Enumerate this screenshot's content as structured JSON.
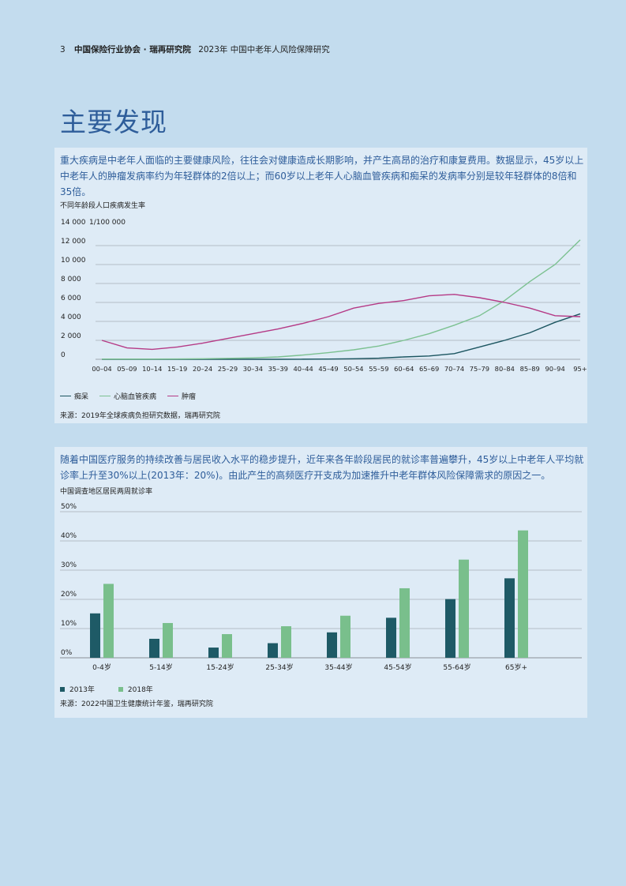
{
  "header": {
    "page_number": "3",
    "org": "中国保险行业协会 · 瑞再研究院",
    "doc_title": "2023年 中国中老年人风险保障研究"
  },
  "page_title": "主要发现",
  "section1": {
    "intro": "重大疾病是中老年人面临的主要健康风险，往往会对健康造成长期影响，并产生高昂的治疗和康复费用。数据显示，45岁以上中老年人的肿瘤发病率约为年轻群体的2倍以上；而60岁以上老年人心脑血管疾病和痴呆的发病率分别是较年轻群体的8倍和35倍。",
    "chart_title": "不同年龄段人口疾病发生率",
    "unit_label": "1/100 000",
    "source": "来源：2019年全球疾病负担研究数据，瑞再研究院"
  },
  "section2": {
    "intro": "随着中国医疗服务的持续改善与居民收入水平的稳步提升，近年来各年龄段居民的就诊率普遍攀升，45岁以上中老年人平均就诊率上升至30%以上(2013年：20%)。由此产生的高频医疗开支成为加速推升中老年群体风险保障需求的原因之一。",
    "chart_title": "中国调查地区居民两周就诊率",
    "source": "来源：2022中国卫生健康统计年鉴，瑞再研究院"
  },
  "chart_data": [
    {
      "type": "line",
      "title": "不同年龄段人口疾病发生率",
      "ylabel": "1/100 000",
      "ylim": [
        0,
        14000
      ],
      "yticks": [
        0,
        2000,
        4000,
        6000,
        8000,
        10000,
        12000,
        14000
      ],
      "ytick_labels": [
        "0",
        "2 000",
        "4 000",
        "6 000",
        "8 000",
        "10 000",
        "12 000",
        "14 000"
      ],
      "categories": [
        "00–04",
        "05–09",
        "10–14",
        "15–19",
        "20–24",
        "25–29",
        "30–34",
        "35–39",
        "40–44",
        "45–49",
        "50–54",
        "55–59",
        "60–64",
        "65–69",
        "70–74",
        "75–79",
        "80–84",
        "85–89",
        "90–94",
        "95+"
      ],
      "grid": true,
      "legend": "bottom-left",
      "series": [
        {
          "name": "痴呆",
          "color": "#1b5560",
          "values": [
            0,
            0,
            0,
            0,
            0,
            0,
            0,
            0,
            10,
            30,
            60,
            120,
            250,
            350,
            600,
            1300,
            2000,
            2800,
            3900,
            4800
          ]
        },
        {
          "name": "心脑血管疾病",
          "color": "#7cc191",
          "values": [
            30,
            30,
            30,
            40,
            60,
            100,
            150,
            250,
            450,
            700,
            1000,
            1400,
            2000,
            2700,
            3600,
            4600,
            6200,
            8200,
            10000,
            12600
          ]
        },
        {
          "name": "肿瘤",
          "color": "#b53a86",
          "values": [
            2000,
            1200,
            1050,
            1300,
            1700,
            2200,
            2700,
            3200,
            3800,
            4500,
            5400,
            5900,
            6200,
            6700,
            6850,
            6500,
            6000,
            5400,
            4600,
            4500
          ]
        }
      ]
    },
    {
      "type": "bar",
      "title": "中国调查地区居民两周就诊率",
      "ylim": [
        0,
        50
      ],
      "yticks": [
        0,
        10,
        20,
        30,
        40,
        50
      ],
      "ytick_labels": [
        "0%",
        "10%",
        "20%",
        "30%",
        "40%",
        "50%"
      ],
      "categories": [
        "0-4岁",
        "5-14岁",
        "15-24岁",
        "25-34岁",
        "35-44岁",
        "45-54岁",
        "55-64岁",
        "65岁+"
      ],
      "grid": true,
      "legend": "bottom-left",
      "series": [
        {
          "name": "2013年",
          "color": "#1e5a66",
          "values": [
            15.2,
            6.5,
            3.5,
            5.0,
            8.7,
            13.7,
            20.1,
            27.2
          ]
        },
        {
          "name": "2018年",
          "color": "#79bf8c",
          "values": [
            25.3,
            11.9,
            8.1,
            10.8,
            14.4,
            23.8,
            33.6,
            43.6
          ]
        }
      ]
    }
  ]
}
